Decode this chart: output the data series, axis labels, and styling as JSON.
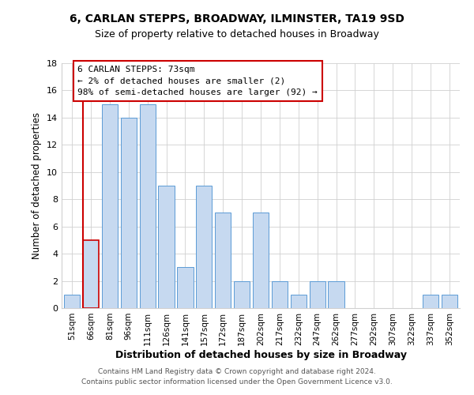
{
  "title": "6, CARLAN STEPPS, BROADWAY, ILMINSTER, TA19 9SD",
  "subtitle": "Size of property relative to detached houses in Broadway",
  "xlabel": "Distribution of detached houses by size in Broadway",
  "ylabel": "Number of detached properties",
  "bin_labels": [
    "51sqm",
    "66sqm",
    "81sqm",
    "96sqm",
    "111sqm",
    "126sqm",
    "141sqm",
    "157sqm",
    "172sqm",
    "187sqm",
    "202sqm",
    "217sqm",
    "232sqm",
    "247sqm",
    "262sqm",
    "277sqm",
    "292sqm",
    "307sqm",
    "322sqm",
    "337sqm",
    "352sqm"
  ],
  "bar_heights": [
    1,
    5,
    15,
    14,
    15,
    9,
    3,
    9,
    7,
    2,
    7,
    2,
    1,
    2,
    2,
    0,
    0,
    0,
    0,
    1,
    1
  ],
  "bar_color": "#c6d9f0",
  "bar_edge_color": "#5b9bd5",
  "highlight_bar_index": 1,
  "highlight_color": "#cc0000",
  "ylim": [
    0,
    18
  ],
  "yticks": [
    0,
    2,
    4,
    6,
    8,
    10,
    12,
    14,
    16,
    18
  ],
  "annotation_title": "6 CARLAN STEPPS: 73sqm",
  "annotation_line1": "← 2% of detached houses are smaller (2)",
  "annotation_line2": "98% of semi-detached houses are larger (92) →",
  "annotation_box_color": "#ffffff",
  "annotation_box_edge_color": "#cc0000",
  "footer_line1": "Contains HM Land Registry data © Crown copyright and database right 2024.",
  "footer_line2": "Contains public sector information licensed under the Open Government Licence v3.0.",
  "background_color": "#ffffff",
  "grid_color": "#d0d0d0"
}
